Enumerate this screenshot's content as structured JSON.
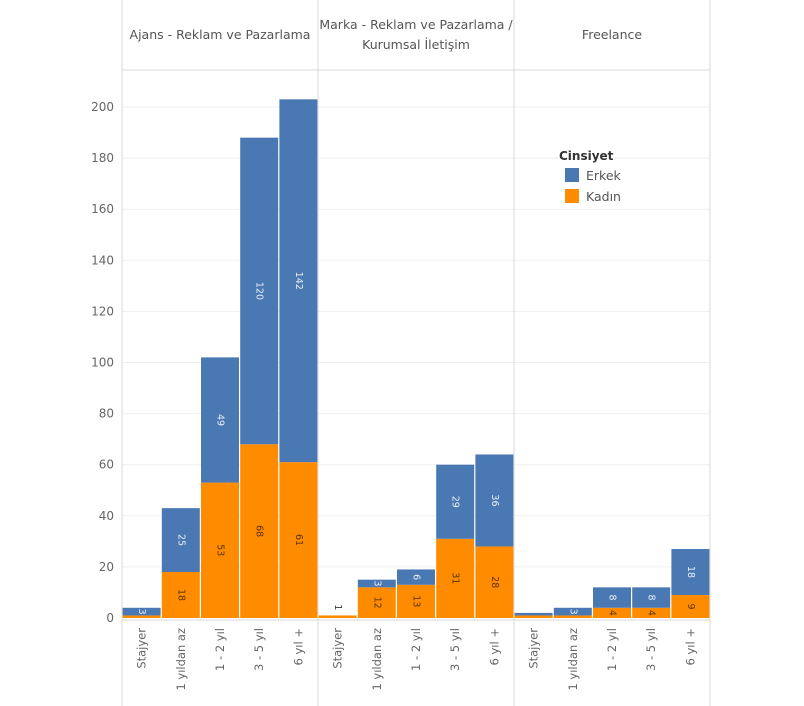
{
  "chart_data": {
    "type": "bar",
    "stacked": true,
    "title": "",
    "xlabel": "",
    "ylabel": "",
    "ylim": [
      0,
      210
    ],
    "yticks": [
      0,
      20,
      40,
      60,
      80,
      100,
      120,
      140,
      160,
      180,
      200
    ],
    "grid": true,
    "legend": {
      "title": "Cinsiyet",
      "placement": "top-right",
      "entries": [
        {
          "name": "Erkek",
          "color": "#4a78b2"
        },
        {
          "name": "Kadın",
          "color": "#ff8c00"
        }
      ]
    },
    "categories": [
      "Stajyer",
      "1 yıldan az",
      "1 - 2 yıl",
      "3 - 5 yıl",
      "6 yıl +"
    ],
    "panels": [
      {
        "title_lines": [
          "Ajans - Reklam ve Pazarlama"
        ],
        "series": [
          {
            "name": "Kadın",
            "values": [
              1,
              18,
              53,
              68,
              61
            ],
            "labels": [
              "",
              "18",
              "53",
              "68",
              "61"
            ]
          },
          {
            "name": "Erkek",
            "values": [
              3,
              25,
              49,
              120,
              142
            ],
            "labels": [
              "3",
              "25",
              "49",
              "120",
              "142"
            ]
          }
        ]
      },
      {
        "title_lines": [
          "Marka - Reklam ve Pazarlama /",
          "Kurumsal İletişim"
        ],
        "series": [
          {
            "name": "Kadın",
            "values": [
              1,
              12,
              13,
              31,
              28
            ],
            "labels": [
              "1",
              "12",
              "13",
              "31",
              "28"
            ]
          },
          {
            "name": "Erkek",
            "values": [
              0,
              3,
              6,
              29,
              36
            ],
            "labels": [
              "",
              "3",
              "6",
              "29",
              "36"
            ]
          }
        ]
      },
      {
        "title_lines": [
          "Freelance"
        ],
        "series": [
          {
            "name": "Kadın",
            "values": [
              1,
              1,
              4,
              4,
              9
            ],
            "labels": [
              "",
              "",
              "4",
              "4",
              "9"
            ]
          },
          {
            "name": "Erkek",
            "values": [
              1,
              3,
              8,
              8,
              18
            ],
            "labels": [
              "",
              "3",
              "8",
              "8",
              "18"
            ]
          }
        ]
      }
    ]
  }
}
